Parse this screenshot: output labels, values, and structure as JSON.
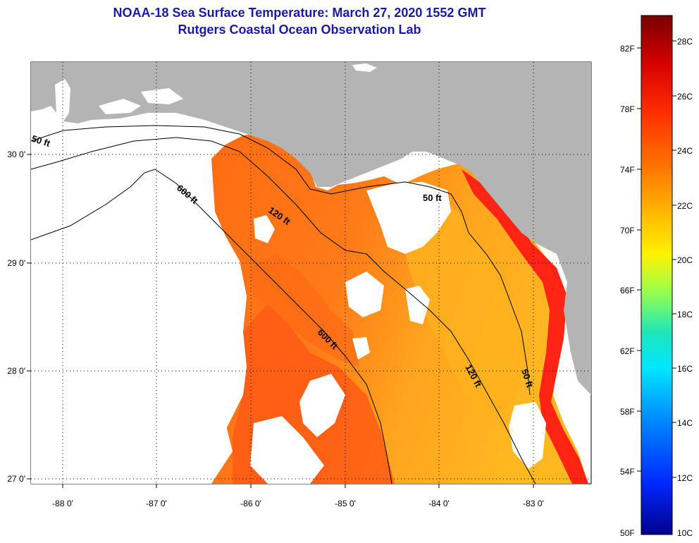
{
  "title": {
    "line1": "NOAA-18 Sea Surface Temperature:  March 27, 2020 1552 GMT",
    "line2": "Rutgers Coastal Ocean Observation Lab"
  },
  "axes": {
    "lon_labels": [
      "-88 0'",
      "-87 0'",
      "-86 0'",
      "-85 0'",
      "-84 0'",
      "-83 0'"
    ],
    "lat_labels": [
      "30 0'",
      "29 0'",
      "28 0'",
      "27 0'"
    ]
  },
  "contours": {
    "fifty_west": "50 ft",
    "fifty_east": "50 ft",
    "fifty_south": "50 ft",
    "one_twenty_north": "120 ft",
    "one_twenty_south": "120 ft",
    "six_hundred_north": "600 ft",
    "six_hundred_south": "600 ft"
  },
  "colorbar": {
    "fahrenheit": [
      "82F",
      "78F",
      "74F",
      "70F",
      "66F",
      "62F",
      "58F",
      "54F",
      "50F"
    ],
    "celsius": [
      "28C",
      "26C",
      "24C",
      "22C",
      "20C",
      "18C",
      "16C",
      "14C",
      "12C",
      "10C"
    ],
    "stops": [
      "#7a0000",
      "#d40000",
      "#ff2a00",
      "#ff7a00",
      "#ffb800",
      "#fff200",
      "#9cff4a",
      "#1ee6b8",
      "#00e6ff",
      "#0088ff",
      "#0028ff",
      "#00008c"
    ]
  },
  "colors": {
    "land": "#b4b4b4",
    "no_data": "#ffffff",
    "warm_sst": "#ff5a14",
    "mid_sst": "#ff9a1c",
    "shelf_sst": "#ffb41e",
    "coastal_hot": "#ff2414"
  }
}
